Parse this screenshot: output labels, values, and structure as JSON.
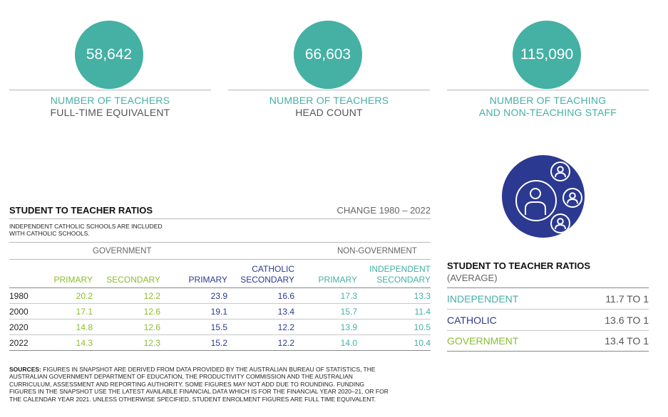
{
  "stats": [
    {
      "value": "58,642",
      "line1": "NUMBER OF TEACHERS",
      "line2": "FULL-TIME EQUIVALENT"
    },
    {
      "value": "66,603",
      "line1": "NUMBER OF TEACHERS",
      "line2": "HEAD COUNT"
    },
    {
      "value": "115,090",
      "line1": "NUMBER OF TEACHING",
      "line2": "AND NON-TEACHING STAFF"
    }
  ],
  "table": {
    "title": "STUDENT TO TEACHER RATIOS",
    "change": "CHANGE 1980 – 2022",
    "note": "INDEPENDENT CATHOLIC SCHOOLS ARE INCLUDED WITH CATHOLIC SCHOOLS.",
    "group_government": "GOVERNMENT",
    "group_non_government": "NON-GOVERNMENT",
    "columns": [
      {
        "line1": "",
        "line2": "PRIMARY"
      },
      {
        "line1": "",
        "line2": "SECONDARY"
      },
      {
        "line1": "",
        "line2": "PRIMARY"
      },
      {
        "line1": "CATHOLIC",
        "line2": "SECONDARY"
      },
      {
        "line1": "",
        "line2": "PRIMARY"
      },
      {
        "line1": "INDEPENDENT",
        "line2": "SECONDARY"
      }
    ],
    "rows": [
      {
        "year": "1980",
        "values": [
          "20.2",
          "12.2",
          "23.9",
          "16.6",
          "17.3",
          "13.3"
        ]
      },
      {
        "year": "2000",
        "values": [
          "17.1",
          "12.6",
          "19.1",
          "13.4",
          "15.7",
          "11.4"
        ]
      },
      {
        "year": "2020",
        "values": [
          "14.8",
          "12.6",
          "15.5",
          "12.2",
          "13.9",
          "10.5"
        ]
      },
      {
        "year": "2022",
        "values": [
          "14.3",
          "12.3",
          "15.2",
          "12.2",
          "14.0",
          "10.4"
        ]
      }
    ]
  },
  "sources": {
    "label": "SOURCES:",
    "text": " FIGURES IN SNAPSHOT ARE DERIVED FROM DATA PROVIDED BY THE AUSTRALIAN BUREAU OF STATISTICS, THE AUSTRALIAN GOVERNMENT DEPARTMENT OF EDUCATION, THE PRODUCTIVITY COMMISSION AND THE AUSTRALIAN CURRICULUM, ASSESSMENT AND REPORTING AUTHORITY. SOME FIGURES MAY NOT ADD DUE TO ROUNDING. FUNDING FIGURES IN THE SNAPSHOT USE THE LATEST AVAILABLE FINANCIAL DATA WHICH IS FOR THE FINANCIAL YEAR 2020–21, OR FOR THE CALENDAR YEAR 2021. UNLESS OTHERWISE SPECIFIED, STUDENT ENROLMENT FIGURES ARE FULL TIME EQUIVALENT."
  },
  "average": {
    "icon": "people-group-icon",
    "title": "STUDENT TO TEACHER RATIOS",
    "subtitle": "(AVERAGE)",
    "rows": [
      {
        "label": "INDEPENDENT",
        "value": "11.7 TO 1"
      },
      {
        "label": "CATHOLIC",
        "value": "13.6 TO 1"
      },
      {
        "label": "GOVERNMENT",
        "value": "13.4 TO 1"
      }
    ]
  },
  "colors": {
    "teal": "#45b0a4",
    "navy": "#2b3990",
    "green": "#8cbd2f"
  }
}
